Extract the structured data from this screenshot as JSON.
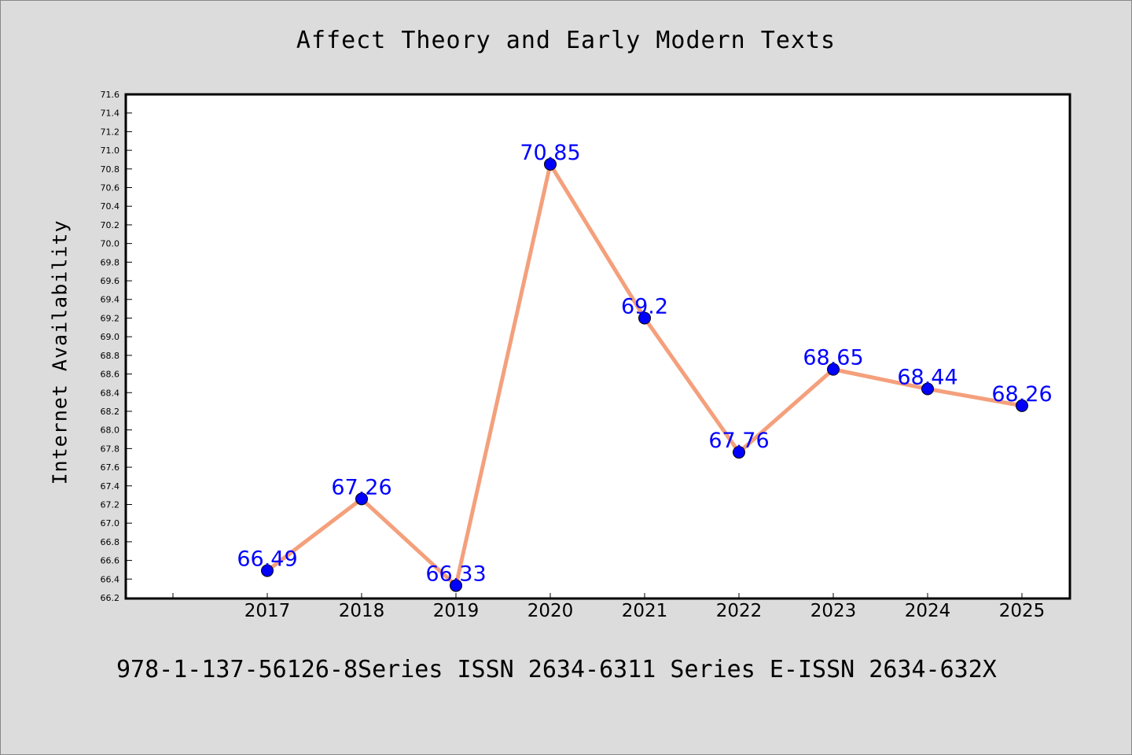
{
  "chart_data": {
    "type": "line",
    "title": "Affect Theory and Early Modern Texts",
    "xlabel": "",
    "ylabel": "Internet Availability",
    "categories": [
      "2017",
      "2018",
      "2019",
      "2020",
      "2021",
      "2022",
      "2023",
      "2024",
      "2025"
    ],
    "series": [
      {
        "values": [
          66.49,
          67.26,
          66.33,
          70.85,
          69.2,
          67.76,
          68.65,
          68.44,
          68.26
        ],
        "data_labels": [
          "66.49",
          "67.26",
          "66.33",
          "70.85",
          "69.2",
          "67.76",
          "68.65",
          "68.44",
          "68.26"
        ]
      }
    ],
    "ylim": [
      66.2,
      71.6
    ],
    "ytick_step": 0.2,
    "grid": false,
    "legend": "none",
    "colors": {
      "line": "#f4a07c",
      "marker": "#0000ff",
      "data_label": "#0000ff",
      "plot_background": "#ffffff",
      "figure_background": "#dcdcdc"
    }
  },
  "footer": {
    "text": "978-1-137-56126-8Series ISSN 2634-6311 Series E-ISSN 2634-632X"
  }
}
